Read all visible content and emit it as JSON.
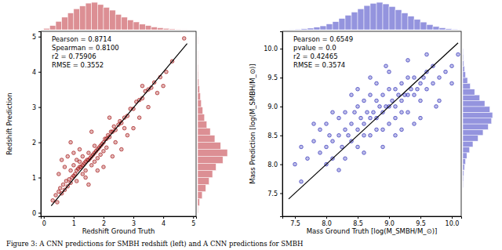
{
  "chart_data": [
    {
      "type": "scatter",
      "x_label": "Redshift Ground Truth",
      "y_label": "Redshift Prediction",
      "annotations": [
        "Pearson = 0.8714",
        "Spearman = 0.8100",
        "r2 = 0.75906",
        "RMSE = 0.3552"
      ],
      "xlim": [
        -0.1,
        5.1
      ],
      "ylim": [
        -0.1,
        5.15
      ],
      "xticks": [
        0,
        1,
        2,
        3,
        4,
        5
      ],
      "yticks": [
        0,
        1,
        2,
        3,
        4,
        5
      ],
      "series": [
        {
          "type": "scatter",
          "marker": "o",
          "color": "#a31515",
          "x": [
            0.3,
            0.4,
            0.45,
            0.5,
            0.55,
            0.6,
            0.65,
            0.7,
            0.75,
            0.8,
            0.85,
            0.9,
            0.9,
            0.95,
            1.0,
            1.0,
            1.05,
            1.1,
            1.1,
            1.15,
            1.2,
            1.2,
            1.25,
            1.3,
            1.3,
            1.35,
            1.4,
            1.4,
            1.45,
            1.5,
            1.5,
            1.55,
            1.6,
            1.6,
            1.65,
            1.7,
            1.7,
            1.75,
            1.8,
            1.8,
            1.85,
            1.9,
            1.95,
            2.0,
            2.0,
            2.05,
            2.1,
            2.15,
            2.2,
            2.25,
            2.3,
            2.35,
            2.4,
            2.5,
            2.55,
            2.6,
            2.7,
            2.8,
            2.9,
            3.0,
            3.1,
            3.2,
            3.3,
            3.4,
            3.5,
            3.6,
            3.7,
            3.9,
            4.1,
            4.3,
            4.7,
            0.6,
            0.8,
            1.0,
            1.2,
            0.9,
            1.5,
            1.8,
            2.0,
            2.3,
            2.6,
            2.8,
            3.0,
            3.2,
            2.2,
            1.6,
            1.4,
            3.5,
            3.8,
            4.0,
            2.4,
            1.1,
            1.3,
            1.7,
            1.9,
            2.1,
            0.7,
            0.5,
            2.7,
            3.3
          ],
          "values": [
            0.35,
            0.5,
            0.3,
            0.6,
            0.7,
            0.55,
            0.8,
            0.65,
            0.9,
            0.75,
            0.95,
            0.85,
            1.2,
            1.0,
            1.05,
            1.35,
            1.1,
            1.2,
            0.9,
            1.25,
            1.3,
            1.45,
            1.3,
            1.35,
            1.6,
            1.4,
            1.45,
            1.2,
            1.5,
            1.5,
            1.7,
            1.55,
            1.6,
            1.35,
            1.65,
            1.7,
            1.9,
            1.75,
            1.8,
            1.55,
            1.85,
            1.9,
            1.95,
            2.0,
            1.75,
            2.1,
            2.1,
            2.2,
            2.15,
            2.3,
            2.3,
            2.45,
            2.35,
            2.5,
            2.6,
            2.55,
            2.7,
            2.75,
            2.95,
            2.95,
            3.15,
            3.2,
            3.25,
            3.45,
            3.5,
            3.55,
            3.7,
            3.85,
            4.0,
            4.3,
            4.95,
            1.5,
            1.6,
            1.7,
            1.8,
            2.0,
            0.8,
            1.2,
            1.3,
            1.6,
            1.8,
            2.2,
            2.4,
            2.7,
            2.7,
            2.3,
            1.0,
            3.0,
            3.4,
            3.6,
            2.0,
            1.5,
            1.1,
            1.45,
            1.65,
            1.85,
            1.3,
            1.1,
            2.4,
            3.6
          ]
        },
        {
          "type": "line",
          "line_style": "solid",
          "color": "#000000",
          "x": [
            0.25,
            4.8
          ],
          "values": [
            0.2,
            4.8
          ]
        }
      ],
      "marginal_x": {
        "color": "#dc8f94",
        "bins": [
          0,
          0.2,
          0.4,
          0.6,
          0.8,
          1.0,
          1.2,
          1.4,
          1.6,
          1.8,
          2.0,
          2.2,
          2.4,
          2.6,
          2.8,
          3.0,
          3.2,
          3.4,
          3.6,
          3.8,
          4.0,
          4.2,
          4.4,
          4.6,
          4.8
        ],
        "counts": [
          5,
          15,
          30,
          45,
          60,
          75,
          85,
          95,
          98,
          90,
          80,
          70,
          55,
          45,
          35,
          28,
          20,
          15,
          10,
          7,
          5,
          3,
          2,
          1
        ]
      },
      "marginal_y": {
        "color": "#dc8f94",
        "bins": [
          0,
          0.2,
          0.4,
          0.6,
          0.8,
          1.0,
          1.2,
          1.4,
          1.6,
          1.8,
          2.0,
          2.2,
          2.4,
          2.6,
          2.8,
          3.0,
          3.2,
          3.4,
          3.6,
          3.8,
          4.0,
          4.2,
          4.4,
          4.6,
          4.8,
          5.0
        ],
        "counts": [
          2,
          8,
          20,
          35,
          50,
          65,
          80,
          110,
          130,
          100,
          75,
          55,
          40,
          30,
          22,
          16,
          12,
          8,
          5,
          3,
          2,
          1,
          1,
          0,
          1
        ]
      }
    },
    {
      "type": "scatter",
      "x_label": "Mass Ground Truth [log(M_SMBH/M_⊙)]",
      "y_label": "Mass Prediction [log(M_SMBH/M_⊙)]",
      "annotations": [
        "Pearson = 0.6549",
        "pvalue = 0.0",
        "r2 = 0.42465",
        "RMSE = 0.3574"
      ],
      "xlim": [
        7.3,
        10.15
      ],
      "ylim": [
        7.1,
        10.3
      ],
      "xticks": [
        7.5,
        {
          "value": 8,
          "label": "8.0"
        },
        8.5,
        {
          "value": 9,
          "label": "9.0"
        },
        9.5,
        {
          "value": 10,
          "label": "10.0"
        }
      ],
      "yticks": [
        7.5,
        {
          "value": 8,
          "label": "8.0"
        },
        8.5,
        {
          "value": 9,
          "label": "9.0"
        },
        9.5,
        {
          "value": 10,
          "label": "10.0"
        }
      ],
      "series": [
        {
          "type": "scatter",
          "marker": "o",
          "color": "#2f2fb8",
          "x": [
            7.5,
            7.6,
            7.7,
            7.8,
            7.9,
            7.9,
            8.0,
            8.0,
            8.1,
            8.1,
            8.2,
            8.2,
            8.25,
            8.3,
            8.3,
            8.35,
            8.4,
            8.4,
            8.45,
            8.5,
            8.5,
            8.5,
            8.55,
            8.6,
            8.6,
            8.6,
            8.65,
            8.7,
            8.7,
            8.7,
            8.75,
            8.8,
            8.8,
            8.8,
            8.85,
            8.9,
            8.9,
            8.9,
            8.95,
            9.0,
            9.0,
            9.0,
            9.05,
            9.1,
            9.1,
            9.1,
            9.15,
            9.2,
            9.2,
            9.2,
            9.25,
            9.3,
            9.3,
            9.3,
            9.35,
            9.4,
            9.4,
            9.45,
            9.5,
            9.5,
            9.55,
            9.6,
            9.6,
            9.7,
            9.7,
            9.8,
            9.9,
            10.0,
            10.1,
            7.6,
            8.0,
            8.3,
            8.6,
            8.9,
            9.2,
            9.5,
            9.8,
            8.1,
            8.4,
            8.7,
            9.0,
            9.3,
            8.2,
            9.6,
            10.0,
            8.8,
            9.1,
            7.8,
            8.5,
            9.4,
            8.95,
            9.75,
            8.05
          ],
          "values": [
            8.0,
            8.3,
            8.1,
            8.4,
            8.2,
            8.6,
            8.3,
            8.7,
            8.4,
            8.1,
            8.5,
            8.8,
            8.3,
            8.6,
            8.9,
            8.5,
            8.7,
            8.4,
            8.9,
            8.6,
            9.0,
            8.3,
            8.8,
            8.7,
            9.1,
            8.5,
            8.9,
            8.8,
            9.2,
            8.5,
            8.9,
            8.8,
            9.1,
            8.6,
            9.0,
            8.9,
            9.2,
            8.6,
            9.0,
            9.0,
            9.3,
            8.7,
            9.1,
            9.0,
            9.3,
            8.8,
            9.2,
            9.1,
            9.4,
            8.9,
            9.2,
            9.2,
            9.5,
            8.9,
            9.3,
            9.2,
            9.5,
            9.3,
            9.4,
            9.1,
            9.5,
            9.3,
            9.6,
            9.4,
            9.7,
            9.5,
            9.6,
            9.7,
            9.9,
            7.7,
            8.0,
            8.1,
            8.2,
            8.3,
            8.6,
            8.8,
            9.1,
            8.9,
            9.2,
            9.5,
            9.6,
            9.8,
            7.9,
            9.9,
            9.4,
            9.4,
            8.5,
            8.7,
            9.3,
            8.7,
            9.7,
            9.0,
            8.5
          ]
        },
        {
          "type": "line",
          "line_style": "solid",
          "color": "#000000",
          "x": [
            7.4,
            10.1
          ],
          "values": [
            7.4,
            10.1
          ]
        }
      ],
      "marginal_x": {
        "color": "#9494de",
        "bins": [
          7.4,
          7.5,
          7.6,
          7.7,
          7.8,
          7.9,
          8.0,
          8.1,
          8.2,
          8.3,
          8.4,
          8.5,
          8.6,
          8.7,
          8.8,
          8.9,
          9.0,
          9.1,
          9.2,
          9.3,
          9.4,
          9.5,
          9.6,
          9.7,
          9.8,
          9.9,
          10.0,
          10.1,
          10.2
        ],
        "counts": [
          1,
          2,
          3,
          5,
          8,
          12,
          18,
          25,
          35,
          45,
          55,
          65,
          75,
          82,
          85,
          80,
          72,
          62,
          52,
          42,
          32,
          24,
          16,
          10,
          6,
          3,
          2,
          1
        ]
      },
      "marginal_y": {
        "color": "#9494de",
        "bins": [
          7.6,
          7.7,
          7.8,
          7.9,
          8.0,
          8.1,
          8.2,
          8.3,
          8.4,
          8.5,
          8.6,
          8.7,
          8.8,
          8.9,
          9.0,
          9.1,
          9.2,
          9.3,
          9.4,
          9.5,
          9.6,
          9.7,
          9.8,
          9.9,
          10.0
        ],
        "counts": [
          1,
          2,
          3,
          5,
          8,
          12,
          20,
          30,
          45,
          60,
          75,
          85,
          88,
          80,
          65,
          50,
          35,
          22,
          14,
          8,
          5,
          3,
          2,
          1
        ]
      }
    }
  ],
  "caption": "Figure 3: A CNN predictions for SMBH redshift (left) and A CNN predictions for SMBH"
}
